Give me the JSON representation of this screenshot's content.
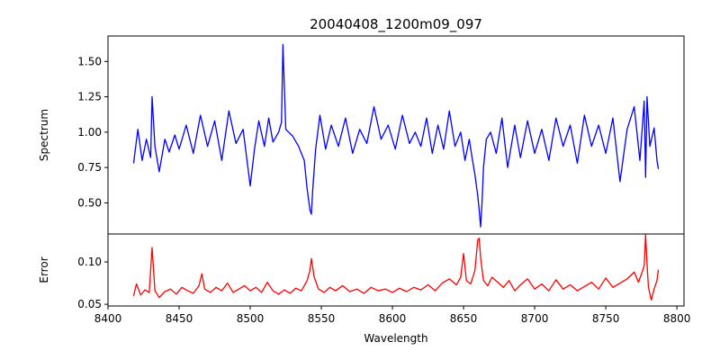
{
  "chart_data": {
    "type": "line",
    "title": "20040408_1200m09_097",
    "xlabel": "Wavelength",
    "xlim": [
      8400,
      8805
    ],
    "xticks": [
      8400,
      8450,
      8500,
      8550,
      8600,
      8650,
      8700,
      8750,
      8800
    ],
    "grid": false,
    "panels": [
      {
        "name": "spectrum-panel",
        "ylabel": "Spectrum",
        "ylim": [
          0.28,
          1.68
        ],
        "yticks": [
          0.5,
          0.75,
          1.0,
          1.25,
          1.5
        ],
        "ytick_labels": [
          "0.50",
          "0.75",
          "1.00",
          "1.25",
          "1.50"
        ],
        "series": [
          {
            "color": "#0000ff",
            "x": [
              8418,
              8421,
              8424,
              8427,
              8430,
              8431,
              8433,
              8436,
              8440,
              8443,
              8447,
              8450,
              8455,
              8460,
              8465,
              8470,
              8475,
              8480,
              8485,
              8490,
              8495,
              8498,
              8500,
              8503,
              8506,
              8510,
              8513,
              8516,
              8520,
              8522,
              8523,
              8525,
              8530,
              8534,
              8538,
              8540,
              8542,
              8543,
              8544,
              8546,
              8549,
              8553,
              8557,
              8562,
              8567,
              8572,
              8577,
              8582,
              8587,
              8592,
              8597,
              8602,
              8607,
              8612,
              8616,
              8620,
              8624,
              8628,
              8632,
              8636,
              8640,
              8644,
              8648,
              8651,
              8654,
              8656,
              8658,
              8660,
              8661,
              8662,
              8663,
              8664,
              8666,
              8669,
              8673,
              8677,
              8681,
              8686,
              8690,
              8695,
              8700,
              8705,
              8710,
              8715,
              8720,
              8725,
              8730,
              8735,
              8740,
              8745,
              8750,
              8755,
              8760,
              8765,
              8770,
              8774,
              8777,
              8778,
              8779,
              8781,
              8784,
              8786,
              8787
            ],
            "y": [
              0.78,
              1.02,
              0.8,
              0.95,
              0.82,
              1.25,
              0.9,
              0.72,
              0.95,
              0.86,
              0.98,
              0.88,
              1.05,
              0.85,
              1.12,
              0.9,
              1.08,
              0.8,
              1.15,
              0.92,
              1.02,
              0.78,
              0.62,
              0.88,
              1.08,
              0.9,
              1.1,
              0.93,
              1.0,
              1.07,
              1.62,
              1.02,
              0.97,
              0.9,
              0.8,
              0.6,
              0.45,
              0.42,
              0.6,
              0.88,
              1.12,
              0.88,
              1.05,
              0.9,
              1.1,
              0.85,
              1.02,
              0.92,
              1.18,
              0.95,
              1.05,
              0.88,
              1.12,
              0.92,
              1.0,
              0.9,
              1.1,
              0.85,
              1.05,
              0.88,
              1.15,
              0.9,
              1.0,
              0.8,
              0.95,
              0.82,
              0.7,
              0.55,
              0.45,
              0.33,
              0.5,
              0.75,
              0.95,
              1.0,
              0.85,
              1.1,
              0.75,
              1.05,
              0.82,
              1.08,
              0.85,
              1.02,
              0.8,
              1.1,
              0.9,
              1.05,
              0.78,
              1.12,
              0.9,
              1.05,
              0.85,
              1.1,
              0.65,
              1.02,
              1.18,
              0.8,
              1.22,
              0.68,
              1.25,
              0.9,
              1.03,
              0.8,
              0.74
            ]
          }
        ]
      },
      {
        "name": "error-panel",
        "ylabel": "Error",
        "ylim": [
          0.048,
          0.133
        ],
        "yticks": [
          0.05,
          0.1
        ],
        "ytick_labels": [
          "0.05",
          "0.10"
        ],
        "series": [
          {
            "color": "#ff0000",
            "x": [
              8418,
              8420,
              8423,
              8426,
              8429,
              8431,
              8433,
              8436,
              8440,
              8444,
              8448,
              8452,
              8456,
              8460,
              8464,
              8466,
              8468,
              8472,
              8476,
              8480,
              8484,
              8488,
              8492,
              8496,
              8500,
              8504,
              8508,
              8512,
              8516,
              8520,
              8524,
              8528,
              8532,
              8536,
              8540,
              8542,
              8543,
              8545,
              8548,
              8552,
              8556,
              8560,
              8565,
              8570,
              8575,
              8580,
              8585,
              8590,
              8595,
              8600,
              8605,
              8610,
              8615,
              8620,
              8625,
              8630,
              8635,
              8640,
              8645,
              8648,
              8650,
              8652,
              8655,
              8658,
              8660,
              8661,
              8662,
              8664,
              8667,
              8670,
              8674,
              8678,
              8682,
              8686,
              8690,
              8695,
              8700,
              8705,
              8710,
              8715,
              8720,
              8725,
              8730,
              8735,
              8740,
              8745,
              8750,
              8755,
              8760,
              8765,
              8770,
              8773,
              8776,
              8777,
              8778,
              8779,
              8780,
              8782,
              8784,
              8786,
              8787
            ],
            "y": [
              0.06,
              0.074,
              0.061,
              0.067,
              0.064,
              0.117,
              0.066,
              0.058,
              0.065,
              0.068,
              0.062,
              0.07,
              0.066,
              0.063,
              0.072,
              0.086,
              0.068,
              0.064,
              0.07,
              0.066,
              0.075,
              0.064,
              0.068,
              0.072,
              0.066,
              0.07,
              0.064,
              0.076,
              0.066,
              0.062,
              0.067,
              0.063,
              0.069,
              0.066,
              0.078,
              0.09,
              0.104,
              0.082,
              0.068,
              0.064,
              0.07,
              0.066,
              0.072,
              0.065,
              0.068,
              0.063,
              0.07,
              0.066,
              0.068,
              0.064,
              0.069,
              0.065,
              0.07,
              0.067,
              0.073,
              0.066,
              0.075,
              0.08,
              0.073,
              0.082,
              0.11,
              0.078,
              0.074,
              0.09,
              0.126,
              0.128,
              0.105,
              0.078,
              0.072,
              0.082,
              0.076,
              0.07,
              0.078,
              0.066,
              0.073,
              0.08,
              0.068,
              0.074,
              0.066,
              0.079,
              0.068,
              0.073,
              0.066,
              0.071,
              0.076,
              0.068,
              0.081,
              0.07,
              0.075,
              0.08,
              0.088,
              0.076,
              0.09,
              0.096,
              0.132,
              0.098,
              0.07,
              0.055,
              0.068,
              0.078,
              0.091
            ]
          }
        ]
      }
    ]
  }
}
